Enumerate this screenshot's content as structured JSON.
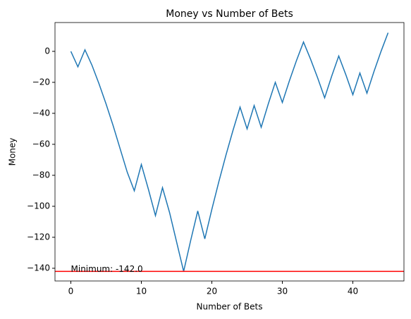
{
  "chart_data": {
    "type": "line",
    "title": "Money vs Number of Bets",
    "xlabel": "Number of Bets",
    "ylabel": "Money",
    "x": [
      0,
      1,
      2,
      3,
      4,
      5,
      6,
      7,
      8,
      9,
      10,
      11,
      12,
      13,
      14,
      15,
      16,
      17,
      18,
      19,
      20,
      21,
      22,
      23,
      24,
      25,
      26,
      27,
      28,
      29,
      30,
      31,
      32,
      33,
      34,
      35,
      36,
      37,
      38,
      39,
      40,
      41,
      42,
      43,
      44,
      45
    ],
    "series": [
      {
        "name": "Money",
        "color": "#1f77b4",
        "values": [
          0,
          -10,
          1,
          -9,
          -21,
          -34,
          -48,
          -63,
          -78,
          -90,
          -73,
          -89,
          -106,
          -88,
          -104,
          -123,
          -142,
          -122,
          -103,
          -121,
          -102,
          -84,
          -67,
          -51,
          -36,
          -50,
          -35,
          -49,
          -34,
          -20,
          -33,
          -19,
          -6,
          6,
          -5,
          -17,
          -30,
          -16,
          -3,
          -15,
          -28,
          -14,
          -27,
          -13,
          0,
          12
        ]
      }
    ],
    "hline": {
      "value": -142,
      "color": "#ff0000"
    },
    "annotation": "Minimum: -142.0",
    "xlim": [
      -2.25,
      47.25
    ],
    "ylim": [
      -148.2,
      18.6
    ],
    "xticks": [
      0,
      10,
      20,
      30,
      40
    ],
    "yticks": [
      {
        "value": -140,
        "label": "−140"
      },
      {
        "value": -120,
        "label": "−120"
      },
      {
        "value": -100,
        "label": "−100"
      },
      {
        "value": -80,
        "label": "−80"
      },
      {
        "value": -60,
        "label": "−60"
      },
      {
        "value": -40,
        "label": "−40"
      },
      {
        "value": -20,
        "label": "−20"
      },
      0
    ]
  }
}
